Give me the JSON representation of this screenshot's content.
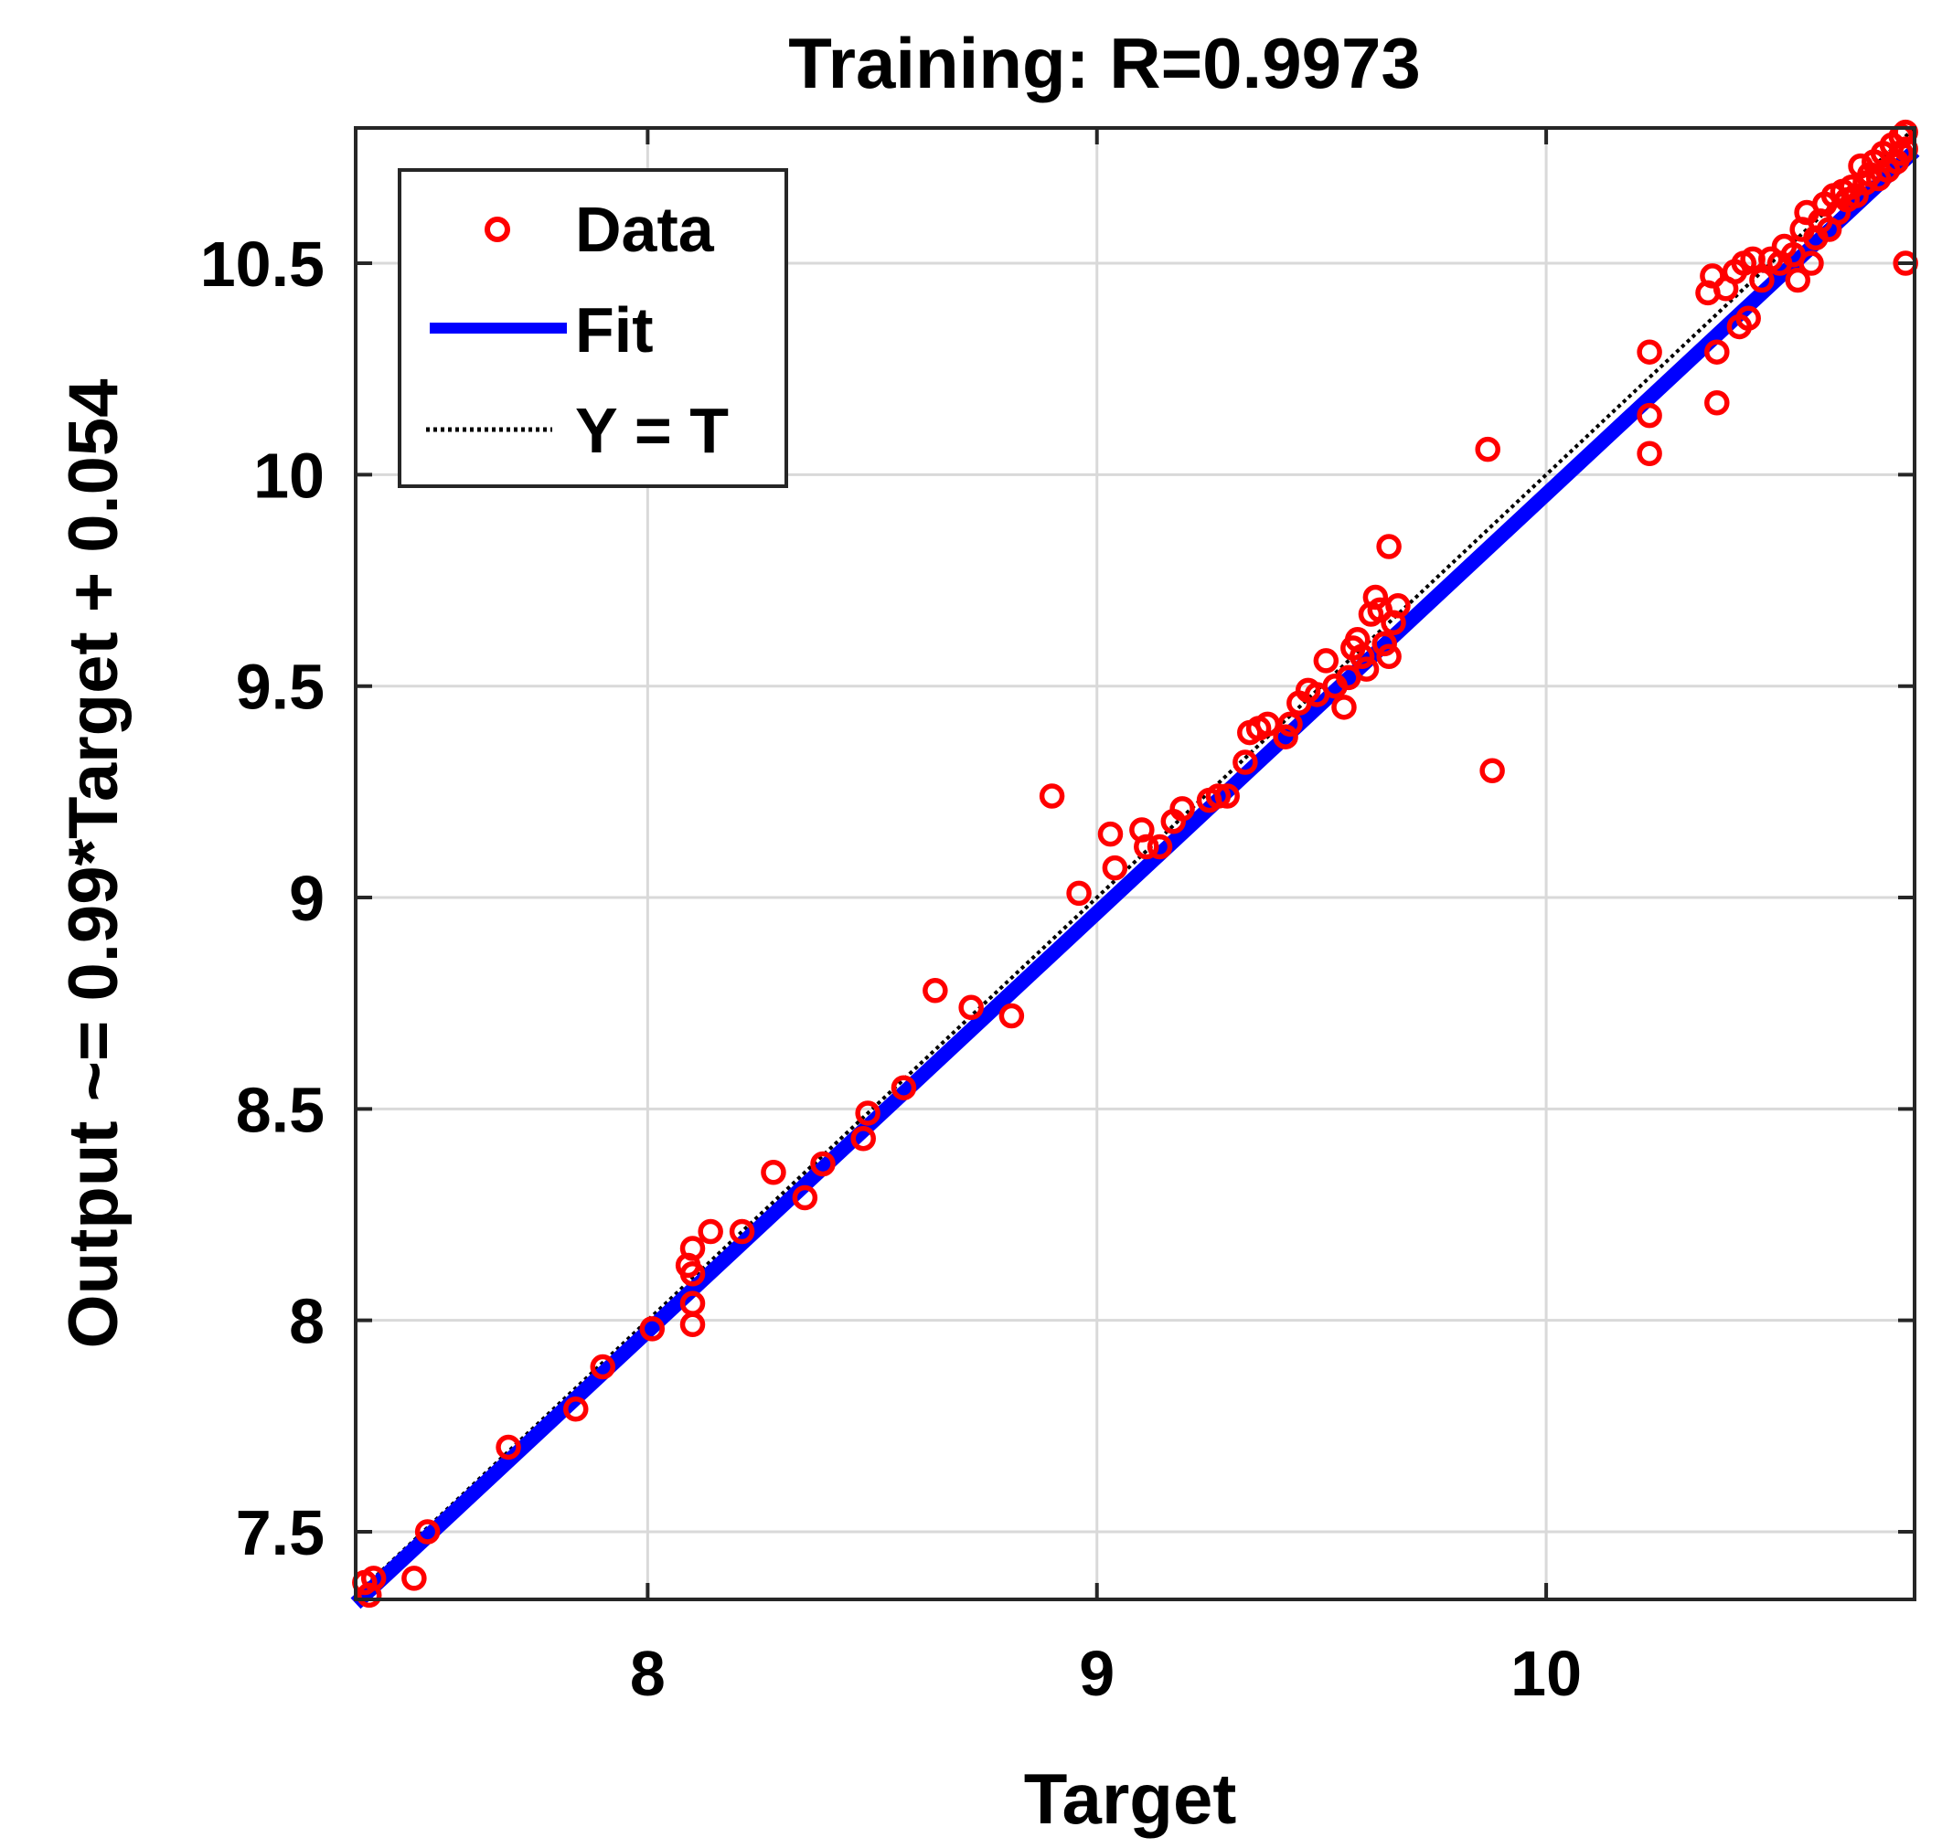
{
  "chart_data": {
    "type": "scatter",
    "title": "Training: R=0.9973",
    "xlabel": "Target",
    "ylabel": "Output ~= 0.99*Target + 0.054",
    "xlim": [
      7.35,
      10.82
    ],
    "ylim": [
      7.34,
      10.82
    ],
    "x_ticks": [
      8,
      9,
      10
    ],
    "x_tick_labels": [
      "8",
      "9",
      "10"
    ],
    "y_ticks": [
      7.5,
      8,
      8.5,
      9,
      9.5,
      10,
      10.5
    ],
    "y_tick_labels": [
      "7.5",
      "8",
      "8.5",
      "9",
      "9.5",
      "10",
      "10.5"
    ],
    "grid": true,
    "legend_position": "top-left",
    "legend": [
      {
        "label": "Data",
        "style": "marker-circle"
      },
      {
        "label": "Fit",
        "style": "solid-line"
      },
      {
        "label": "Y = T",
        "style": "dotted-line"
      }
    ],
    "colors": {
      "data": "#ff0000",
      "fit": "#0000ff",
      "identity": "#000000",
      "grid": "#d9d9d9"
    },
    "fit": {
      "slope": 0.99,
      "intercept": 0.054
    },
    "series": [
      {
        "name": "Data",
        "points": [
          [
            7.37,
            7.38
          ],
          [
            7.38,
            7.35
          ],
          [
            7.39,
            7.39
          ],
          [
            7.48,
            7.39
          ],
          [
            7.51,
            7.5
          ],
          [
            7.69,
            7.7
          ],
          [
            7.84,
            7.79
          ],
          [
            7.9,
            7.89
          ],
          [
            8.01,
            7.98
          ],
          [
            8.09,
            8.13
          ],
          [
            8.1,
            8.17
          ],
          [
            8.1,
            8.11
          ],
          [
            8.1,
            8.04
          ],
          [
            8.1,
            7.99
          ],
          [
            8.14,
            8.21
          ],
          [
            8.21,
            8.21
          ],
          [
            8.28,
            8.35
          ],
          [
            8.35,
            8.29
          ],
          [
            8.39,
            8.37
          ],
          [
            8.48,
            8.43
          ],
          [
            8.49,
            8.49
          ],
          [
            8.57,
            8.55
          ],
          [
            8.64,
            8.78
          ],
          [
            8.72,
            8.74
          ],
          [
            8.81,
            8.72
          ],
          [
            8.9,
            9.24
          ],
          [
            8.96,
            9.01
          ],
          [
            9.03,
            9.15
          ],
          [
            9.04,
            9.07
          ],
          [
            9.1,
            9.16
          ],
          [
            9.11,
            9.12
          ],
          [
            9.14,
            9.12
          ],
          [
            9.17,
            9.18
          ],
          [
            9.19,
            9.21
          ],
          [
            9.25,
            9.23
          ],
          [
            9.27,
            9.24
          ],
          [
            9.29,
            9.24
          ],
          [
            9.33,
            9.32
          ],
          [
            9.34,
            9.39
          ],
          [
            9.36,
            9.4
          ],
          [
            9.38,
            9.41
          ],
          [
            9.42,
            9.38
          ],
          [
            9.43,
            9.41
          ],
          [
            9.45,
            9.46
          ],
          [
            9.47,
            9.49
          ],
          [
            9.49,
            9.48
          ],
          [
            9.51,
            9.56
          ],
          [
            9.53,
            9.5
          ],
          [
            9.55,
            9.45
          ],
          [
            9.56,
            9.52
          ],
          [
            9.57,
            9.59
          ],
          [
            9.58,
            9.61
          ],
          [
            9.59,
            9.57
          ],
          [
            9.6,
            9.54
          ],
          [
            9.61,
            9.67
          ],
          [
            9.62,
            9.71
          ],
          [
            9.63,
            9.68
          ],
          [
            9.64,
            9.6
          ],
          [
            9.65,
            9.57
          ],
          [
            9.65,
            9.83
          ],
          [
            9.66,
            9.65
          ],
          [
            9.67,
            9.69
          ],
          [
            9.87,
            10.06
          ],
          [
            9.88,
            9.3
          ],
          [
            10.23,
            10.29
          ],
          [
            10.23,
            10.14
          ],
          [
            10.23,
            10.05
          ],
          [
            10.36,
            10.43
          ],
          [
            10.37,
            10.47
          ],
          [
            10.38,
            10.29
          ],
          [
            10.38,
            10.17
          ],
          [
            10.4,
            10.44
          ],
          [
            10.42,
            10.48
          ],
          [
            10.43,
            10.35
          ],
          [
            10.44,
            10.5
          ],
          [
            10.45,
            10.37
          ],
          [
            10.46,
            10.51
          ],
          [
            10.48,
            10.46
          ],
          [
            10.5,
            10.51
          ],
          [
            10.52,
            10.5
          ],
          [
            10.53,
            10.54
          ],
          [
            10.55,
            10.52
          ],
          [
            10.56,
            10.46
          ],
          [
            10.57,
            10.58
          ],
          [
            10.58,
            10.62
          ],
          [
            10.59,
            10.5
          ],
          [
            10.6,
            10.56
          ],
          [
            10.61,
            10.6
          ],
          [
            10.62,
            10.64
          ],
          [
            10.63,
            10.58
          ],
          [
            10.64,
            10.66
          ],
          [
            10.65,
            10.62
          ],
          [
            10.66,
            10.67
          ],
          [
            10.67,
            10.65
          ],
          [
            10.68,
            10.68
          ],
          [
            10.69,
            10.66
          ],
          [
            10.7,
            10.73
          ],
          [
            10.71,
            10.69
          ],
          [
            10.72,
            10.71
          ],
          [
            10.73,
            10.74
          ],
          [
            10.74,
            10.7
          ],
          [
            10.75,
            10.76
          ],
          [
            10.76,
            10.72
          ],
          [
            10.77,
            10.78
          ],
          [
            10.78,
            10.74
          ],
          [
            10.79,
            10.8
          ],
          [
            10.79,
            10.76
          ],
          [
            10.8,
            10.77
          ],
          [
            10.8,
            10.81
          ],
          [
            10.8,
            10.5
          ]
        ]
      }
    ]
  }
}
